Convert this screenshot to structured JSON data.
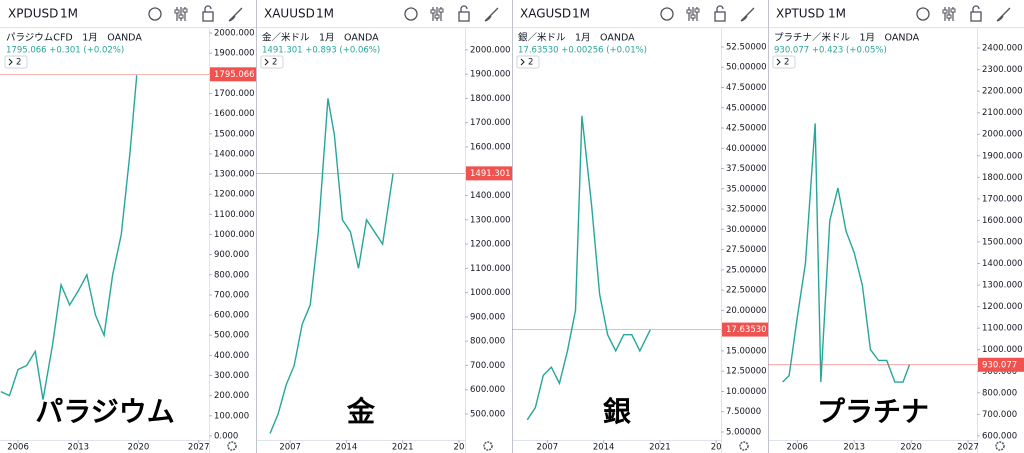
{
  "chart_data": [
    {
      "type": "line",
      "symbol": "XPDUSD",
      "interval": "1M",
      "legend_title": "パラジウムCFD　1月　OANDA",
      "legend_values": "1795.066 +0.301 (+0.02%)",
      "badge": "2",
      "overlay_label": "パラジウム",
      "color": "#26a69a",
      "last_color": "#ef5350",
      "x": [
        2004.0,
        2005,
        2006,
        2007,
        2008,
        2008.9,
        2010,
        2011,
        2012,
        2013,
        2014,
        2015,
        2016,
        2017,
        2018,
        2019,
        2019.8
      ],
      "values": [
        220,
        200,
        330,
        350,
        420,
        180,
        450,
        750,
        650,
        720,
        800,
        600,
        500,
        800,
        1000,
        1400,
        1790
      ],
      "last": 1795.066,
      "xlim": [
        2003.9,
        2028.2
      ],
      "xticks": [
        2006,
        2013,
        2020,
        2027
      ],
      "ylim": [
        -20,
        2025
      ],
      "yticks": [
        {
          "value": 0,
          "label": "0.000"
        },
        {
          "value": 100,
          "label": "100.000"
        },
        {
          "value": 200,
          "label": "200.000"
        },
        {
          "value": 300,
          "label": "300.000"
        },
        {
          "value": 400,
          "label": "400.000"
        },
        {
          "value": 500,
          "label": "500.000"
        },
        {
          "value": 600,
          "label": "600.000"
        },
        {
          "value": 700,
          "label": "700.000"
        },
        {
          "value": 800,
          "label": "800.000"
        },
        {
          "value": 900,
          "label": "900.000"
        },
        {
          "value": 1000,
          "label": "1000.000"
        },
        {
          "value": 1100,
          "label": "1100.000"
        },
        {
          "value": 1200,
          "label": "1200.000"
        },
        {
          "value": 1300,
          "label": "1300.000"
        },
        {
          "value": 1400,
          "label": "1400.000"
        },
        {
          "value": 1500,
          "label": "1500.000"
        },
        {
          "value": 1600,
          "label": "1600.000"
        },
        {
          "value": 1700,
          "label": "1700.000"
        },
        {
          "value": 1800,
          "label": "1800.000"
        },
        {
          "value": 1900,
          "label": "1900.000"
        },
        {
          "value": 2000,
          "label": "2000.000"
        }
      ]
    },
    {
      "type": "line",
      "symbol": "XAUUSD",
      "interval": "1M",
      "legend_title": "金／米ドル　1月　OANDA",
      "legend_values": "1491.301 +0.893 (+0.06%)",
      "badge": "2",
      "overlay_label": "金",
      "color": "#26a69a",
      "last_color": "#ef5350",
      "x": [
        2004.5,
        2005.5,
        2006.5,
        2007.5,
        2008.5,
        2009.5,
        2010.5,
        2011.7,
        2012.5,
        2013.5,
        2014.5,
        2015.5,
        2016.5,
        2017.5,
        2018.5,
        2019.8
      ],
      "values": [
        420,
        500,
        620,
        700,
        870,
        950,
        1250,
        1800,
        1650,
        1300,
        1250,
        1100,
        1300,
        1250,
        1200,
        1490
      ],
      "last": 1491.301,
      "xlim": [
        2002.75,
        2028.75
      ],
      "xticks": [
        2007,
        2014,
        2021,
        {
          "value": 2028,
          "label": "20"
        }
      ],
      "ylim": [
        393,
        2090
      ],
      "yticks": [
        {
          "value": 500,
          "label": "500.000"
        },
        {
          "value": 600,
          "label": "600.000"
        },
        {
          "value": 700,
          "label": "700.000"
        },
        {
          "value": 800,
          "label": "800.000"
        },
        {
          "value": 900,
          "label": "900.000"
        },
        {
          "value": 1000,
          "label": "1000.000"
        },
        {
          "value": 1100,
          "label": "1100.000"
        },
        {
          "value": 1200,
          "label": "1200.000"
        },
        {
          "value": 1300,
          "label": "1300.000"
        },
        {
          "value": 1400,
          "label": "1400.000"
        },
        {
          "value": 1500,
          "label": "1500.000"
        },
        {
          "value": 1600,
          "label": "1600.000"
        },
        {
          "value": 1700,
          "label": "1700.000"
        },
        {
          "value": 1800,
          "label": "1800.000"
        },
        {
          "value": 1900,
          "label": "1900.000"
        },
        {
          "value": 2000,
          "label": "2000.000"
        }
      ]
    },
    {
      "type": "line",
      "symbol": "XAGUSD",
      "interval": "1M",
      "legend_title": "銀／米ドル　1月　OANDA",
      "legend_values": "17.63530 +0.00256 (+0.01%)",
      "badge": "2",
      "overlay_label": "銀",
      "color": "#26a69a",
      "last_color": "#ef5350",
      "x": [
        2004.5,
        2005.5,
        2006.5,
        2007.5,
        2008.5,
        2009.5,
        2010.5,
        2011.3,
        2012.5,
        2013.5,
        2014.5,
        2015.5,
        2016.5,
        2017.5,
        2018.5,
        2019.8
      ],
      "values": [
        6.5,
        8,
        12,
        13,
        11,
        15,
        20,
        44,
        33,
        22,
        17,
        15,
        17,
        17,
        15,
        17.6
      ],
      "last": {
        "value": 17.6353,
        "label": "17.63530"
      },
      "xlim": [
        2002.6,
        2028.6
      ],
      "xticks": [
        2007,
        2014,
        2021,
        {
          "value": 2028,
          "label": "20"
        }
      ],
      "ylim": [
        4.01,
        54.84
      ],
      "yticks": [
        {
          "value": 5,
          "label": "5.00000"
        },
        {
          "value": 7.5,
          "label": "7.50000"
        },
        {
          "value": 10,
          "label": "10.00000"
        },
        {
          "value": 12.5,
          "label": "12.50000"
        },
        {
          "value": 15,
          "label": "15.00000"
        },
        {
          "value": 17.5,
          "label": "17.50000"
        },
        {
          "value": 20,
          "label": "20.00000"
        },
        {
          "value": 22.5,
          "label": "22.50000"
        },
        {
          "value": 25,
          "label": "25.00000"
        },
        {
          "value": 27.5,
          "label": "27.50000"
        },
        {
          "value": 30,
          "label": "30.00000"
        },
        {
          "value": 32.5,
          "label": "32.50000"
        },
        {
          "value": 35,
          "label": "35.00000"
        },
        {
          "value": 37.5,
          "label": "37.50000"
        },
        {
          "value": 40,
          "label": "40.00000"
        },
        {
          "value": 42.5,
          "label": "42.50000"
        },
        {
          "value": 45,
          "label": "45.00000"
        },
        {
          "value": 47.5,
          "label": "47.50000"
        },
        {
          "value": 50,
          "label": "50.00000"
        },
        {
          "value": 52.5,
          "label": "52.50000"
        }
      ]
    },
    {
      "type": "line",
      "symbol": "XPTUSD",
      "interval": "1M",
      "legend_title": "プラチナ／米ドル　1月　OANDA",
      "legend_values": "930.077 +0.423 (+0.05%)",
      "badge": "2",
      "overlay_label": "プラチナ",
      "color": "#26a69a",
      "last_color": "#ef5350",
      "x": [
        2004.2,
        2005,
        2006,
        2007,
        2008.2,
        2008.9,
        2010,
        2011,
        2012,
        2013,
        2014,
        2015,
        2016,
        2017,
        2018,
        2019,
        2019.8
      ],
      "values": [
        850,
        880,
        1150,
        1400,
        2050,
        850,
        1600,
        1750,
        1550,
        1450,
        1300,
        1000,
        950,
        950,
        850,
        850,
        930
      ],
      "last": 930.077,
      "xlim": [
        2002.4,
        2028.1
      ],
      "xticks": [
        2006,
        2013,
        2020,
        2027
      ],
      "ylim": [
        581,
        2493
      ],
      "yticks": [
        {
          "value": 600,
          "label": "600.000"
        },
        {
          "value": 700,
          "label": "700.000"
        },
        {
          "value": 800,
          "label": "800.000"
        },
        {
          "value": 900,
          "label": "900.000"
        },
        {
          "value": 1000,
          "label": "1000.000"
        },
        {
          "value": 1100,
          "label": "1100.000"
        },
        {
          "value": 1200,
          "label": "1200.000"
        },
        {
          "value": 1300,
          "label": "1300.000"
        },
        {
          "value": 1400,
          "label": "1400.000"
        },
        {
          "value": 1500,
          "label": "1500.000"
        },
        {
          "value": 1600,
          "label": "1600.000"
        },
        {
          "value": 1700,
          "label": "1700.000"
        },
        {
          "value": 1800,
          "label": "1800.000"
        },
        {
          "value": 1900,
          "label": "1900.000"
        },
        {
          "value": 2000,
          "label": "2000.000"
        },
        {
          "value": 2100,
          "label": "2100.000"
        },
        {
          "value": 2200,
          "label": "2200.000"
        },
        {
          "value": 2300,
          "label": "2300.000"
        },
        {
          "value": 2400,
          "label": "2400.000"
        }
      ]
    }
  ]
}
